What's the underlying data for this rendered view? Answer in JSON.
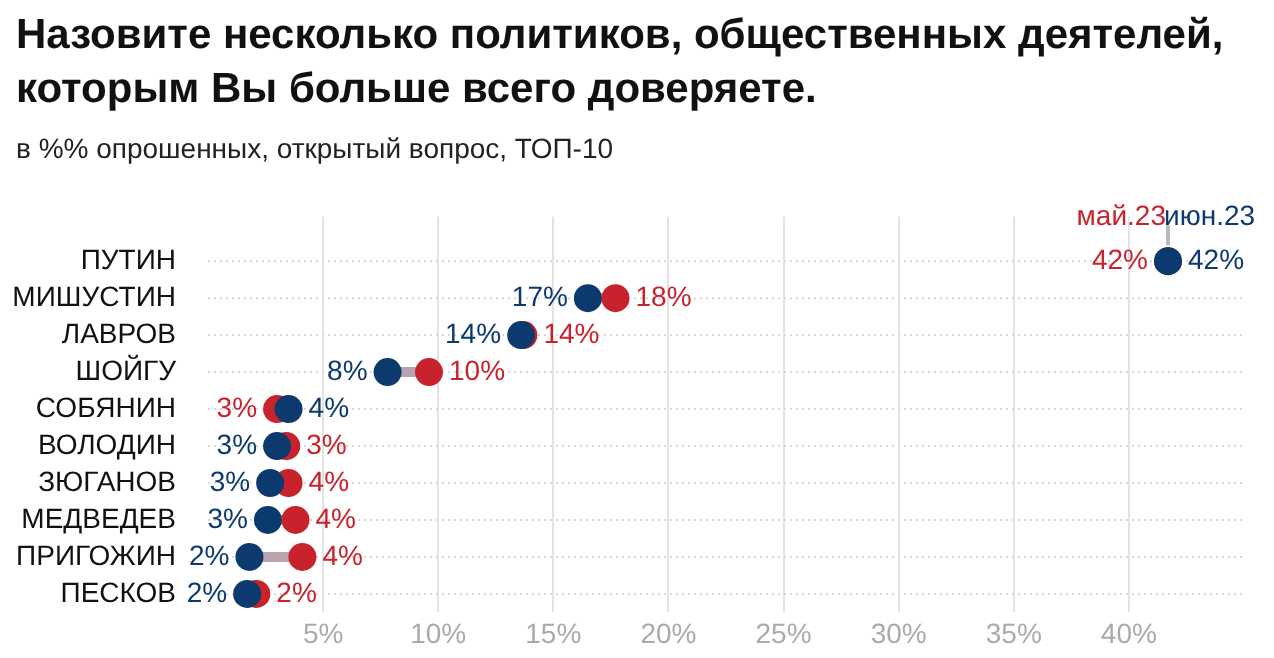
{
  "chart_data": {
    "type": "scatter",
    "title": "Назовите несколько политиков, общественных деятелей, которым Вы больше всего доверяете.",
    "subtitle": "в %% опрошенных, открытый вопрос, ТОП-10",
    "orientation": "horizontal",
    "categories": [
      "ПУТИН",
      "МИШУСТИН",
      "ЛАВРОВ",
      "ШОЙГУ",
      "СОБЯНИН",
      "ВОЛОДИН",
      "ЗЮГАНОВ",
      "МЕДВЕДЕВ",
      "ПРИГОЖИН",
      "ПЕСКОВ"
    ],
    "series": [
      {
        "name": "май.23",
        "color": "#c8232c",
        "values": [
          41.7,
          17.7,
          13.7,
          9.6,
          3.0,
          3.4,
          3.5,
          3.8,
          4.1,
          2.1
        ],
        "value_labels": [
          "42%",
          "18%",
          "14%",
          "10%",
          "3%",
          "3%",
          "4%",
          "4%",
          "4%",
          "2%"
        ]
      },
      {
        "name": "июн.23",
        "color": "#0d3a6e",
        "values": [
          41.7,
          16.5,
          13.6,
          7.8,
          3.5,
          3.0,
          2.7,
          2.6,
          1.8,
          1.7
        ],
        "value_labels": [
          "42%",
          "17%",
          "14%",
          "8%",
          "4%",
          "3%",
          "3%",
          "3%",
          "2%",
          "2%"
        ]
      }
    ],
    "xlim": [
      0,
      45
    ],
    "xticks": [
      {
        "value": 5,
        "label": "5%"
      },
      {
        "value": 10,
        "label": "10%"
      },
      {
        "value": 15,
        "label": "15%"
      },
      {
        "value": 20,
        "label": "20%"
      },
      {
        "value": 25,
        "label": "25%"
      },
      {
        "value": 30,
        "label": "30%"
      },
      {
        "value": 35,
        "label": "35%"
      },
      {
        "value": 40,
        "label": "40%"
      }
    ],
    "grid": true,
    "marker": "circle"
  }
}
